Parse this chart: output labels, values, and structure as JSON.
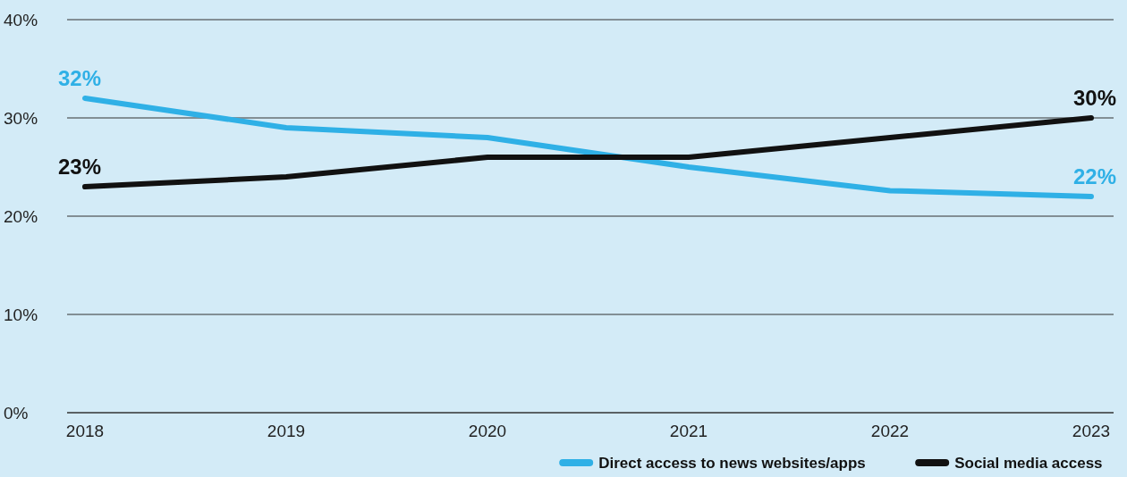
{
  "chart_data": {
    "type": "line",
    "categories": [
      "2018",
      "2019",
      "2020",
      "2021",
      "2022",
      "2023"
    ],
    "series": [
      {
        "name": "Direct access to news websites/apps",
        "color": "#2fb0e6",
        "values": [
          32,
          29,
          28,
          25,
          22.6,
          22
        ],
        "value_labels": [
          "32%",
          null,
          null,
          null,
          null,
          "22%"
        ]
      },
      {
        "name": "Social media access",
        "color": "#111111",
        "values": [
          23,
          24,
          26,
          26,
          28,
          30
        ],
        "value_labels": [
          "23%",
          null,
          null,
          null,
          null,
          "30%"
        ]
      }
    ],
    "ylim": [
      0,
      40
    ],
    "yticks": [
      {
        "value": 0,
        "label": "0%"
      },
      {
        "value": 10,
        "label": "10%"
      },
      {
        "value": 20,
        "label": "20%"
      },
      {
        "value": 30,
        "label": "30%"
      },
      {
        "value": 40,
        "label": "40%"
      }
    ],
    "grid": "y",
    "legend": "bottom right",
    "marker": "none",
    "line_style": "solid"
  }
}
